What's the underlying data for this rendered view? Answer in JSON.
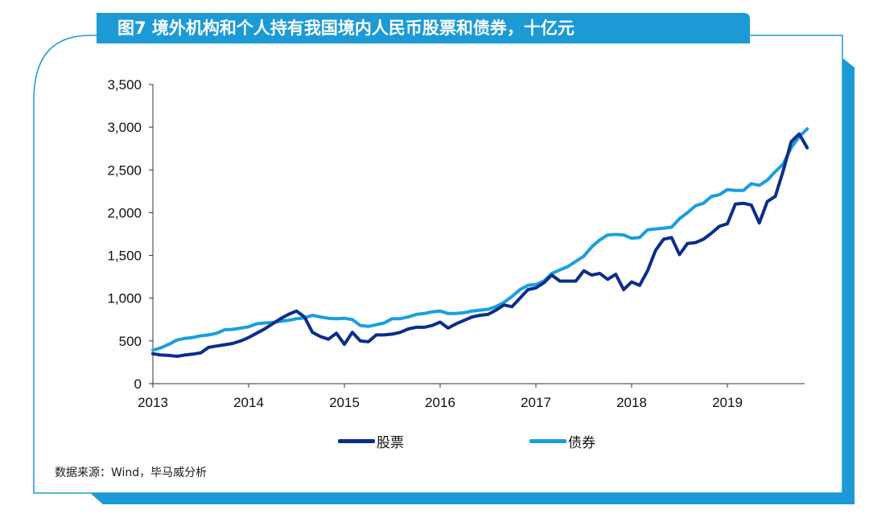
{
  "title": "图7  境外机构和个人持有我国境内人民币股票和债券，十亿元",
  "source": "数据来源：Wind，毕马威分析",
  "colors": {
    "frame": "#1b9ad6",
    "title_bg": "#1b9ad6",
    "shadow": "#1b9ad6",
    "stocks": "#0b2e8a",
    "bonds": "#1a9ee0",
    "axis": "#333333"
  },
  "chart_data": {
    "type": "line",
    "title": "图7  境外机构和个人持有我国境内人民币股票和债券，十亿元",
    "xlabel": "",
    "ylabel": "",
    "x_ticks": [
      "2013",
      "2014",
      "2015",
      "2016",
      "2017",
      "2018",
      "2019"
    ],
    "y_ticks": [
      "0",
      "500",
      "1,000",
      "1,500",
      "2,000",
      "2,500",
      "3,000",
      "3,500"
    ],
    "ylim": [
      0,
      3500
    ],
    "xlim": [
      "2013-01",
      "2019-11"
    ],
    "grid": false,
    "legend_position": "bottom-center",
    "series": [
      {
        "name": "股票",
        "color": "#0b2e8a",
        "points": [
          [
            "2013-01",
            350
          ],
          [
            "2013-02",
            335
          ],
          [
            "2013-03",
            330
          ],
          [
            "2013-04",
            320
          ],
          [
            "2013-05",
            335
          ],
          [
            "2013-06",
            345
          ],
          [
            "2013-07",
            360
          ],
          [
            "2013-08",
            425
          ],
          [
            "2013-09",
            440
          ],
          [
            "2013-10",
            455
          ],
          [
            "2013-11",
            470
          ],
          [
            "2013-12",
            500
          ],
          [
            "2014-01",
            540
          ],
          [
            "2014-02",
            590
          ],
          [
            "2014-03",
            640
          ],
          [
            "2014-04",
            700
          ],
          [
            "2014-05",
            760
          ],
          [
            "2014-06",
            810
          ],
          [
            "2014-07",
            850
          ],
          [
            "2014-08",
            780
          ],
          [
            "2014-09",
            600
          ],
          [
            "2014-10",
            550
          ],
          [
            "2014-11",
            520
          ],
          [
            "2014-12",
            590
          ],
          [
            "2015-01",
            460
          ],
          [
            "2015-02",
            600
          ],
          [
            "2015-03",
            500
          ],
          [
            "2015-04",
            490
          ],
          [
            "2015-05",
            570
          ],
          [
            "2015-06",
            570
          ],
          [
            "2015-07",
            580
          ],
          [
            "2015-08",
            600
          ],
          [
            "2015-09",
            640
          ],
          [
            "2015-10",
            660
          ],
          [
            "2015-11",
            660
          ],
          [
            "2015-12",
            680
          ],
          [
            "2016-01",
            720
          ],
          [
            "2016-02",
            650
          ],
          [
            "2016-03",
            700
          ],
          [
            "2016-04",
            740
          ],
          [
            "2016-05",
            780
          ],
          [
            "2016-06",
            800
          ],
          [
            "2016-07",
            810
          ],
          [
            "2016-08",
            860
          ],
          [
            "2016-09",
            920
          ],
          [
            "2016-10",
            900
          ],
          [
            "2016-11",
            1000
          ],
          [
            "2016-12",
            1100
          ],
          [
            "2017-01",
            1120
          ],
          [
            "2017-02",
            1180
          ],
          [
            "2017-03",
            1270
          ],
          [
            "2017-04",
            1200
          ],
          [
            "2017-05",
            1200
          ],
          [
            "2017-06",
            1200
          ],
          [
            "2017-07",
            1320
          ],
          [
            "2017-08",
            1270
          ],
          [
            "2017-09",
            1290
          ],
          [
            "2017-10",
            1220
          ],
          [
            "2017-11",
            1280
          ],
          [
            "2017-12",
            1100
          ],
          [
            "2018-01",
            1190
          ],
          [
            "2018-02",
            1150
          ],
          [
            "2018-03",
            1320
          ],
          [
            "2018-04",
            1560
          ],
          [
            "2018-05",
            1690
          ],
          [
            "2018-06",
            1710
          ],
          [
            "2018-07",
            1510
          ],
          [
            "2018-08",
            1640
          ],
          [
            "2018-09",
            1650
          ],
          [
            "2018-10",
            1690
          ],
          [
            "2018-11",
            1760
          ],
          [
            "2018-12",
            1840
          ],
          [
            "2019-01",
            1870
          ],
          [
            "2019-02",
            2100
          ],
          [
            "2019-03",
            2110
          ],
          [
            "2019-04",
            2090
          ],
          [
            "2019-05",
            1880
          ],
          [
            "2019-06",
            2130
          ],
          [
            "2019-07",
            2190
          ],
          [
            "2019-08",
            2490
          ],
          [
            "2019-09",
            2830
          ],
          [
            "2019-10",
            2920
          ],
          [
            "2019-11",
            2760
          ]
        ]
      },
      {
        "name": "债券",
        "color": "#1a9ee0",
        "points": [
          [
            "2013-01",
            390
          ],
          [
            "2013-02",
            420
          ],
          [
            "2013-03",
            460
          ],
          [
            "2013-04",
            510
          ],
          [
            "2013-05",
            530
          ],
          [
            "2013-06",
            540
          ],
          [
            "2013-07",
            560
          ],
          [
            "2013-08",
            570
          ],
          [
            "2013-09",
            590
          ],
          [
            "2013-10",
            630
          ],
          [
            "2013-11",
            635
          ],
          [
            "2013-12",
            650
          ],
          [
            "2014-01",
            665
          ],
          [
            "2014-02",
            700
          ],
          [
            "2014-03",
            710
          ],
          [
            "2014-04",
            715
          ],
          [
            "2014-05",
            730
          ],
          [
            "2014-06",
            740
          ],
          [
            "2014-07",
            760
          ],
          [
            "2014-08",
            770
          ],
          [
            "2014-09",
            800
          ],
          [
            "2014-10",
            780
          ],
          [
            "2014-11",
            765
          ],
          [
            "2014-12",
            760
          ],
          [
            "2015-01",
            765
          ],
          [
            "2015-02",
            750
          ],
          [
            "2015-03",
            680
          ],
          [
            "2015-04",
            670
          ],
          [
            "2015-05",
            690
          ],
          [
            "2015-06",
            710
          ],
          [
            "2015-07",
            760
          ],
          [
            "2015-08",
            760
          ],
          [
            "2015-09",
            780
          ],
          [
            "2015-10",
            810
          ],
          [
            "2015-11",
            820
          ],
          [
            "2015-12",
            840
          ],
          [
            "2016-01",
            850
          ],
          [
            "2016-02",
            820
          ],
          [
            "2016-03",
            820
          ],
          [
            "2016-04",
            830
          ],
          [
            "2016-05",
            850
          ],
          [
            "2016-06",
            860
          ],
          [
            "2016-07",
            870
          ],
          [
            "2016-08",
            900
          ],
          [
            "2016-09",
            950
          ],
          [
            "2016-10",
            1020
          ],
          [
            "2016-11",
            1100
          ],
          [
            "2016-12",
            1150
          ],
          [
            "2017-01",
            1160
          ],
          [
            "2017-02",
            1200
          ],
          [
            "2017-03",
            1290
          ],
          [
            "2017-04",
            1330
          ],
          [
            "2017-05",
            1370
          ],
          [
            "2017-06",
            1430
          ],
          [
            "2017-07",
            1490
          ],
          [
            "2017-08",
            1600
          ],
          [
            "2017-09",
            1680
          ],
          [
            "2017-10",
            1740
          ],
          [
            "2017-11",
            1745
          ],
          [
            "2017-12",
            1740
          ],
          [
            "2018-01",
            1700
          ],
          [
            "2018-02",
            1710
          ],
          [
            "2018-03",
            1800
          ],
          [
            "2018-04",
            1810
          ],
          [
            "2018-05",
            1820
          ],
          [
            "2018-06",
            1830
          ],
          [
            "2018-07",
            1930
          ],
          [
            "2018-08",
            2000
          ],
          [
            "2018-09",
            2080
          ],
          [
            "2018-10",
            2110
          ],
          [
            "2018-11",
            2190
          ],
          [
            "2018-12",
            2210
          ],
          [
            "2019-01",
            2270
          ],
          [
            "2019-02",
            2260
          ],
          [
            "2019-03",
            2260
          ],
          [
            "2019-04",
            2340
          ],
          [
            "2019-05",
            2320
          ],
          [
            "2019-06",
            2380
          ],
          [
            "2019-07",
            2480
          ],
          [
            "2019-08",
            2570
          ],
          [
            "2019-09",
            2760
          ],
          [
            "2019-10",
            2890
          ],
          [
            "2019-11",
            2980
          ]
        ]
      }
    ]
  }
}
